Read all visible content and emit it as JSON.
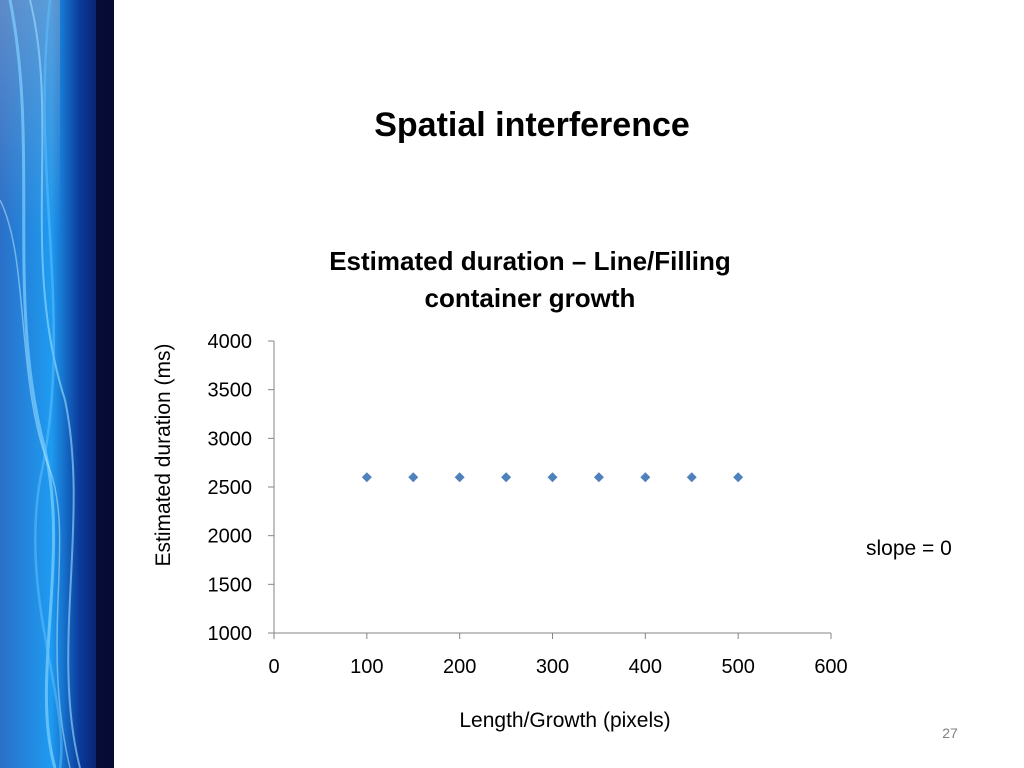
{
  "slide": {
    "title": "Spatial interference",
    "annotation": "slope = 0",
    "page_number": "27"
  },
  "colors": {
    "marker": "#4f81bd",
    "axis": "#868686",
    "banner_dark": "#08104a",
    "banner_light": "#1e9bf0"
  },
  "chart_data": {
    "type": "scatter",
    "title_lines": [
      "Estimated duration – Line/Filling",
      "container growth"
    ],
    "xlabel": "Length/Growth (pixels)",
    "ylabel": "Estimated duration (ms)",
    "xlim": [
      0,
      600
    ],
    "ylim": [
      1000,
      4000
    ],
    "xticks": [
      0,
      100,
      200,
      300,
      400,
      500,
      600
    ],
    "yticks": [
      1000,
      1500,
      2000,
      2500,
      3000,
      3500,
      4000
    ],
    "grid": false,
    "legend": "none",
    "marker": "diamond",
    "series": [
      {
        "x": [
          100,
          150,
          200,
          250,
          300,
          350,
          400,
          450,
          500
        ],
        "y": [
          2600,
          2600,
          2600,
          2600,
          2600,
          2600,
          2600,
          2600,
          2600
        ]
      }
    ]
  }
}
